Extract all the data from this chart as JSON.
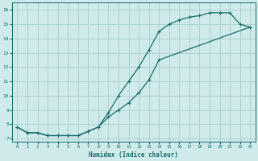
{
  "xlabel": "Humidex (Indice chaleur)",
  "bg_color": "#ceeaea",
  "line_color": "#1a6b6b",
  "grid_color": "#aacece",
  "xlim": [
    -0.5,
    23.5
  ],
  "ylim": [
    6.8,
    16.5
  ],
  "xticks": [
    0,
    1,
    2,
    3,
    4,
    5,
    6,
    7,
    8,
    9,
    10,
    11,
    12,
    13,
    14,
    15,
    16,
    17,
    18,
    19,
    20,
    21,
    22,
    23
  ],
  "yticks": [
    7,
    8,
    9,
    10,
    11,
    12,
    13,
    14,
    15,
    16
  ],
  "curve1_x": [
    0,
    1,
    2,
    3,
    4,
    5,
    6,
    7,
    8,
    9,
    10,
    11,
    12,
    13,
    14,
    15,
    16,
    17,
    18,
    19,
    20,
    21,
    22,
    23
  ],
  "curve1_y": [
    7.8,
    7.4,
    7.4,
    7.2,
    7.2,
    7.2,
    7.2,
    7.5,
    7.8,
    8.8,
    10.0,
    11.0,
    12.0,
    13.2,
    14.5,
    15.0,
    15.3,
    15.5,
    15.6,
    15.8,
    15.8,
    15.8,
    15.0,
    14.8
  ],
  "curve2_x": [
    0,
    1,
    2,
    3,
    4,
    5,
    6,
    7,
    8,
    9,
    10,
    11,
    12,
    13,
    14,
    23
  ],
  "curve2_y": [
    7.8,
    7.4,
    7.4,
    7.2,
    7.2,
    7.2,
    7.2,
    7.5,
    7.8,
    8.5,
    9.0,
    9.5,
    10.2,
    11.1,
    12.5,
    14.8
  ]
}
